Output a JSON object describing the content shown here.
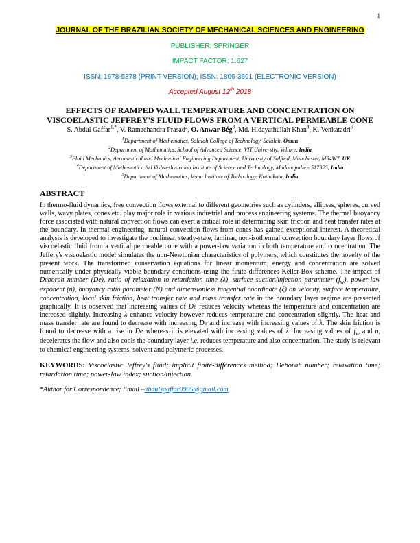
{
  "page_number": "1",
  "journal_name": "JOURNAL OF THE BRAZILIAN SOCIETY OF MECHANICAL SCIENCES AND ENGINEERING",
  "publisher_line": "PUBLISHER: SPRINGER",
  "impact_line": "IMPACT FACTOR: 1.627",
  "issn_line": "ISSN: 1678-5878 (PRINT VERSION); ISSN: 1806-3691 (ELECTRONIC VERSION)",
  "accepted_prefix": "Accepted August 12",
  "accepted_suffix": " 2018",
  "accepted_sup": "th",
  "title_line1": "EFFECTS OF RAMPED WALL TEMPERATURE AND CONCENTRATION ON",
  "title_line2": "VISCOELASTIC JEFFREY'S FLUID FLOWS FROM A VERTICAL PERMEABLE CONE",
  "authors_html": "S. Abdul Gaffar<sup>1,*</sup>, V. Ramachandra Prasad<sup>2</sup>, <b>O. Anwar Bég</b><sup>3</sup>, Md. Hidayathullah Khan<sup>4</sup>, K. Venkatadri<sup>5</sup>",
  "affiliations": [
    "<sup>1</sup>Department of Mathematics, Salalah College of Technology, Salalah, <b>Oman</b>",
    "<sup>2</sup>Department of Mathematics, School of Advanced Science, VIT University, Vellore, <b>India</b>",
    "<sup>3</sup>Fluid Mechanics, Aeronautical and Mechanical Engineering Department, University of Salford, Manchester, M54WT, <b>UK</b>",
    "<sup>4</sup>Department of Mathematics, Sri Vishveshvaraiah Institute of Science and Technology, Madanapalle - 517325, <b>India</b>",
    "<sup>5</sup>Department of Mathematics, Vemu Institute of Technology, Kothakota, <b>India</b>"
  ],
  "abstract_heading": "ABSTRACT",
  "abstract_html": "In thermo-fluid dynamics, free convection flows external to different geometries such as cylinders, ellipses, spheres, curved walls, wavy plates, cones etc. play major role in various industrial and process engineering systems. The thermal buoyancy force associated with natural convection flows can exert a critical role in determining skin friction and heat transfer rates at the boundary. In thermal engineering, natural convection flows from cones has gained exceptional interest. A theoretical analysis is developed to investigate the nonlinear, steady-state, laminar, non-isothermal convection boundary layer flows of viscoelastic fluid from a vertical permeable cone with a power-law variation in both temperature and concentration. The Jeffery's viscoelastic model simulates the non-Newtonian characteristics of polymers, which constitutes the novelty of the present work. The transformed conservation equations for linear momentum, energy and concentration are solved numerically under physically viable boundary conditions using the finite-differences Keller-Box scheme. The impact of <i>Deborah number (De), ratio of relaxation to retardation time (λ), surface suction/injection parameter (f<sub>w</sub>), power-law exponent (n), buoyancy ratio parameter (N) and dimensionless tangential coordinate (ξ) on velocity, surface temperature, concentration, local skin friction, heat transfer rate and mass transfer rate</i> in the boundary layer regime are presented graphically. It is observed that increasing values of <i>De</i> reduces velocity whereas the temperature and concentration are increased slightly. Increasing <i>λ</i> enhance velocity however reduces temperature and concentration slightly. The heat and mass transfer rate are found to decrease with increasing <i>De</i> and increase with increasing values of <i>λ</i>. The skin friction is found to decrease with a rise in <i>De</i> whereas it is elevated with increasing values of <i>λ</i>. Increasing values of <i>f<sub>w</sub></i> and <i>n</i>, decelerates the flow and also cools the boundary layer <i>i.e.</i> reduces temperature and also concentration. The study is relevant to chemical engineering systems, solvent and polymeric processes.",
  "keywords_label": "KEYWORDS:",
  "keywords_text": "Viscoelastic Jeffrey's fluid; implicit finite-differences method; Deborah number; relaxation time; retardation time; power-law index; suction/injection.",
  "corr_text": "*Author for Correspondence; Email ",
  "corr_email": "abdulsgaffar0905@gmail.com",
  "colors": {
    "highlight": "#ffff00",
    "green": "#00af50",
    "blue": "#0070c0",
    "red": "#c00000",
    "text": "#000000",
    "background": "#ffffff"
  },
  "fonts": {
    "body": "Times New Roman",
    "header": "Arial"
  }
}
